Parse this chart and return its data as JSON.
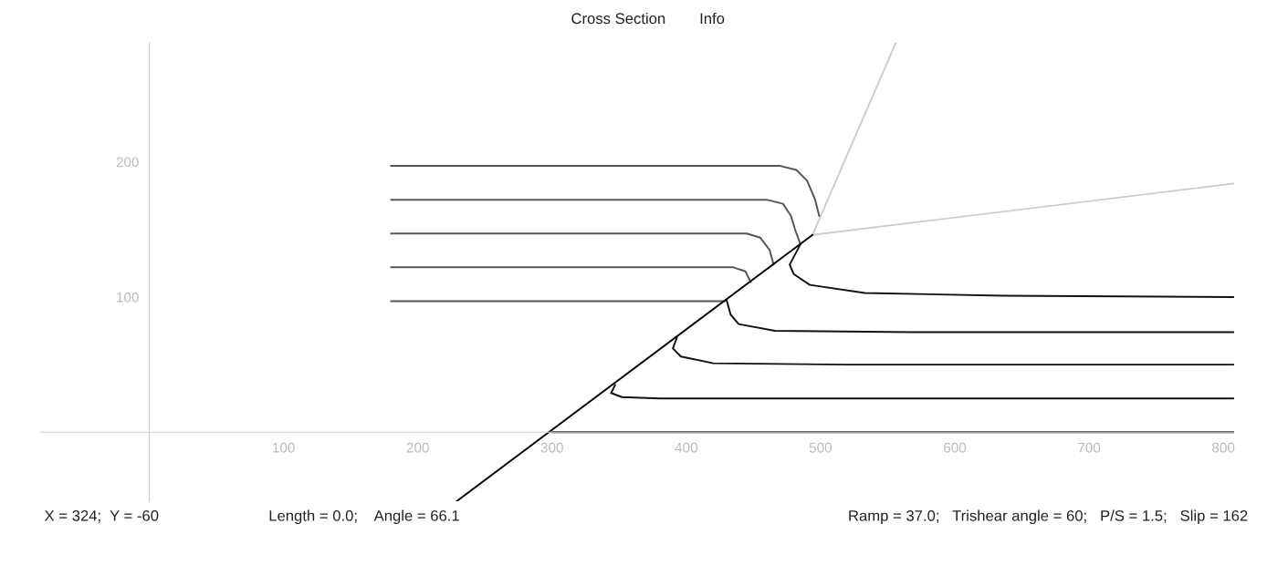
{
  "chart_data": {
    "type": "line",
    "annotations": [
      "Cross Section",
      "Info",
      "X = 324;  Y = -60",
      "Length = 0.0;    Angle = 66.1",
      "Ramp = 37.0;   Trishear angle = 60;   P/S = 1.5;   Slip = 162"
    ],
    "xlim": [
      -81,
      808
    ],
    "ylim": [
      -51,
      288
    ],
    "xticks": [
      100,
      200,
      300,
      400,
      500,
      600,
      700,
      800
    ],
    "yticks": [
      100,
      200
    ],
    "grid": false,
    "legend": false,
    "marker": "none",
    "line_style": "solid",
    "series": [
      {
        "color": "#cccccc",
        "x": [
          494,
          556
        ],
        "values": [
          146,
          288
        ]
      },
      {
        "color": "#cccccc",
        "x": [
          494,
          808
        ],
        "values": [
          146,
          184
        ]
      },
      {
        "color": "#555555",
        "x": [
          180,
          470,
          482,
          490,
          496,
          499
        ],
        "values": [
          197,
          197,
          194,
          186,
          172,
          160
        ]
      },
      {
        "color": "#555555",
        "x": [
          180,
          460,
          472,
          478,
          481,
          485
        ],
        "values": [
          172,
          172,
          169,
          160,
          150,
          139
        ]
      },
      {
        "color": "#555555",
        "x": [
          180,
          445,
          455,
          462,
          465
        ],
        "values": [
          147,
          147,
          144,
          135,
          124
        ]
      },
      {
        "color": "#555555",
        "x": [
          180,
          435,
          444,
          448
        ],
        "values": [
          122,
          122,
          119,
          111
        ]
      },
      {
        "color": "#555555",
        "x": [
          180,
          429
        ],
        "values": [
          97,
          97
        ]
      },
      {
        "color": "#111111",
        "x": [
          485,
          477,
          480,
          492,
          533,
          636,
          808
        ],
        "values": [
          139,
          124,
          117,
          109,
          103,
          101,
          100
        ]
      },
      {
        "color": "#111111",
        "x": [
          430,
          433,
          439,
          466,
          568,
          808
        ],
        "values": [
          98,
          87,
          80,
          75,
          74,
          74
        ]
      },
      {
        "color": "#111111",
        "x": [
          393,
          390,
          396,
          420,
          520,
          808
        ],
        "values": [
          70,
          62,
          56,
          51,
          50,
          50
        ]
      },
      {
        "color": "#111111",
        "x": [
          347,
          344,
          352,
          380,
          480,
          808
        ],
        "values": [
          35,
          29,
          26,
          25,
          25,
          25
        ]
      },
      {
        "color": "#111111",
        "x": [
          300,
          808
        ],
        "values": [
          0,
          0
        ]
      },
      {
        "color": "#000000",
        "x": [
          229,
          494
        ],
        "values": [
          -51,
          146
        ]
      }
    ]
  }
}
